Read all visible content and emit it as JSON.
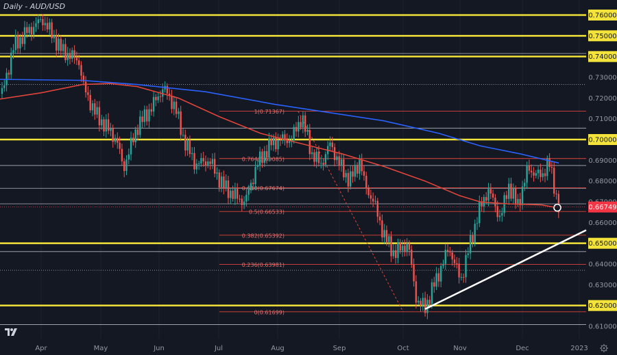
{
  "chart_data": {
    "type": "candlestick",
    "title": "Daily - AUD/USD",
    "ylim": [
      0.6045,
      0.7655
    ],
    "x_ticks": [
      "Apr",
      "May",
      "Jun",
      "Jul",
      "Aug",
      "Sep",
      "Oct",
      "Nov",
      "Dec",
      "2023"
    ],
    "y_ticks": [
      "0.76000",
      "0.75000",
      "0.74000",
      "0.73000",
      "0.72000",
      "0.71000",
      "0.70000",
      "0.69000",
      "0.68000",
      "0.67000",
      "0.66000",
      "0.65000",
      "0.64000",
      "0.63000",
      "0.62000",
      "0.61000"
    ],
    "current_price": {
      "label": "0.66749",
      "value": 0.66749,
      "color": "#f23645"
    },
    "horizontal_levels": [
      {
        "label": "0.76000",
        "value": 0.76,
        "style": "thick-yellow"
      },
      {
        "label": "0.75000",
        "value": 0.75,
        "style": "thick-yellow"
      },
      {
        "label": "0.74000",
        "value": 0.74,
        "style": "thick-yellow"
      },
      {
        "label": "0.70000",
        "value": 0.7,
        "style": "thick-yellow"
      },
      {
        "label": "0.65000",
        "value": 0.65,
        "style": "thick-yellow"
      },
      {
        "label": "0.62000",
        "value": 0.62,
        "style": "thick-yellow"
      },
      {
        "value": 0.7415,
        "style": "thin-white"
      },
      {
        "value": 0.7265,
        "style": "thin-white-dotted"
      },
      {
        "value": 0.7055,
        "style": "thin-white"
      },
      {
        "value": 0.6875,
        "style": "thin-white"
      },
      {
        "value": 0.6765,
        "style": "thin-white"
      },
      {
        "value": 0.669,
        "style": "thin-white"
      },
      {
        "value": 0.646,
        "style": "thin-white"
      },
      {
        "value": 0.637,
        "style": "thin-white-dotted"
      },
      {
        "value": 0.6108,
        "style": "thin-white"
      }
    ],
    "fibonacci": [
      {
        "label": "1(0.71367)",
        "value": 0.71367
      },
      {
        "label": "0.764(0.69085)",
        "value": 0.69085
      },
      {
        "label": "0.618(0.67674)",
        "value": 0.67674
      },
      {
        "label": "0.5(0.66533)",
        "value": 0.66533
      },
      {
        "label": "0.382(0.65392)",
        "value": 0.65392
      },
      {
        "label": "0.236(0.63981)",
        "value": 0.63981
      },
      {
        "label": "0(0.61699)",
        "value": 0.61699
      }
    ],
    "moving_averages": [
      {
        "color": "#2962ff",
        "points": [
          [
            0,
            0.729
          ],
          [
            120,
            0.7285
          ],
          [
            200,
            0.7265
          ],
          [
            300,
            0.723
          ],
          [
            400,
            0.717
          ],
          [
            480,
            0.713
          ],
          [
            560,
            0.709
          ],
          [
            640,
            0.703
          ],
          [
            700,
            0.697
          ],
          [
            760,
            0.693
          ],
          [
            815,
            0.6887
          ]
        ]
      },
      {
        "color": "#e0453a",
        "points": [
          [
            0,
            0.7195
          ],
          [
            60,
            0.7225
          ],
          [
            120,
            0.7265
          ],
          [
            160,
            0.727
          ],
          [
            200,
            0.7255
          ],
          [
            260,
            0.72
          ],
          [
            320,
            0.711
          ],
          [
            380,
            0.703
          ],
          [
            440,
            0.698
          ],
          [
            500,
            0.693
          ],
          [
            560,
            0.687
          ],
          [
            620,
            0.68
          ],
          [
            670,
            0.673
          ],
          [
            700,
            0.67
          ],
          [
            740,
            0.669
          ],
          [
            790,
            0.6685
          ],
          [
            815,
            0.667
          ]
        ]
      }
    ],
    "trendline": {
      "from": [
        620,
        0.6183
      ],
      "to": [
        855,
        0.6563
      ],
      "color": "#ffffff"
    },
    "projection_line": {
      "from": [
        435,
        0.7136
      ],
      "to": [
        588,
        0.617
      ],
      "color": "#e0453a"
    }
  },
  "icons": {
    "logo": "tradingview-logo-icon",
    "settings": "settings-icon"
  }
}
